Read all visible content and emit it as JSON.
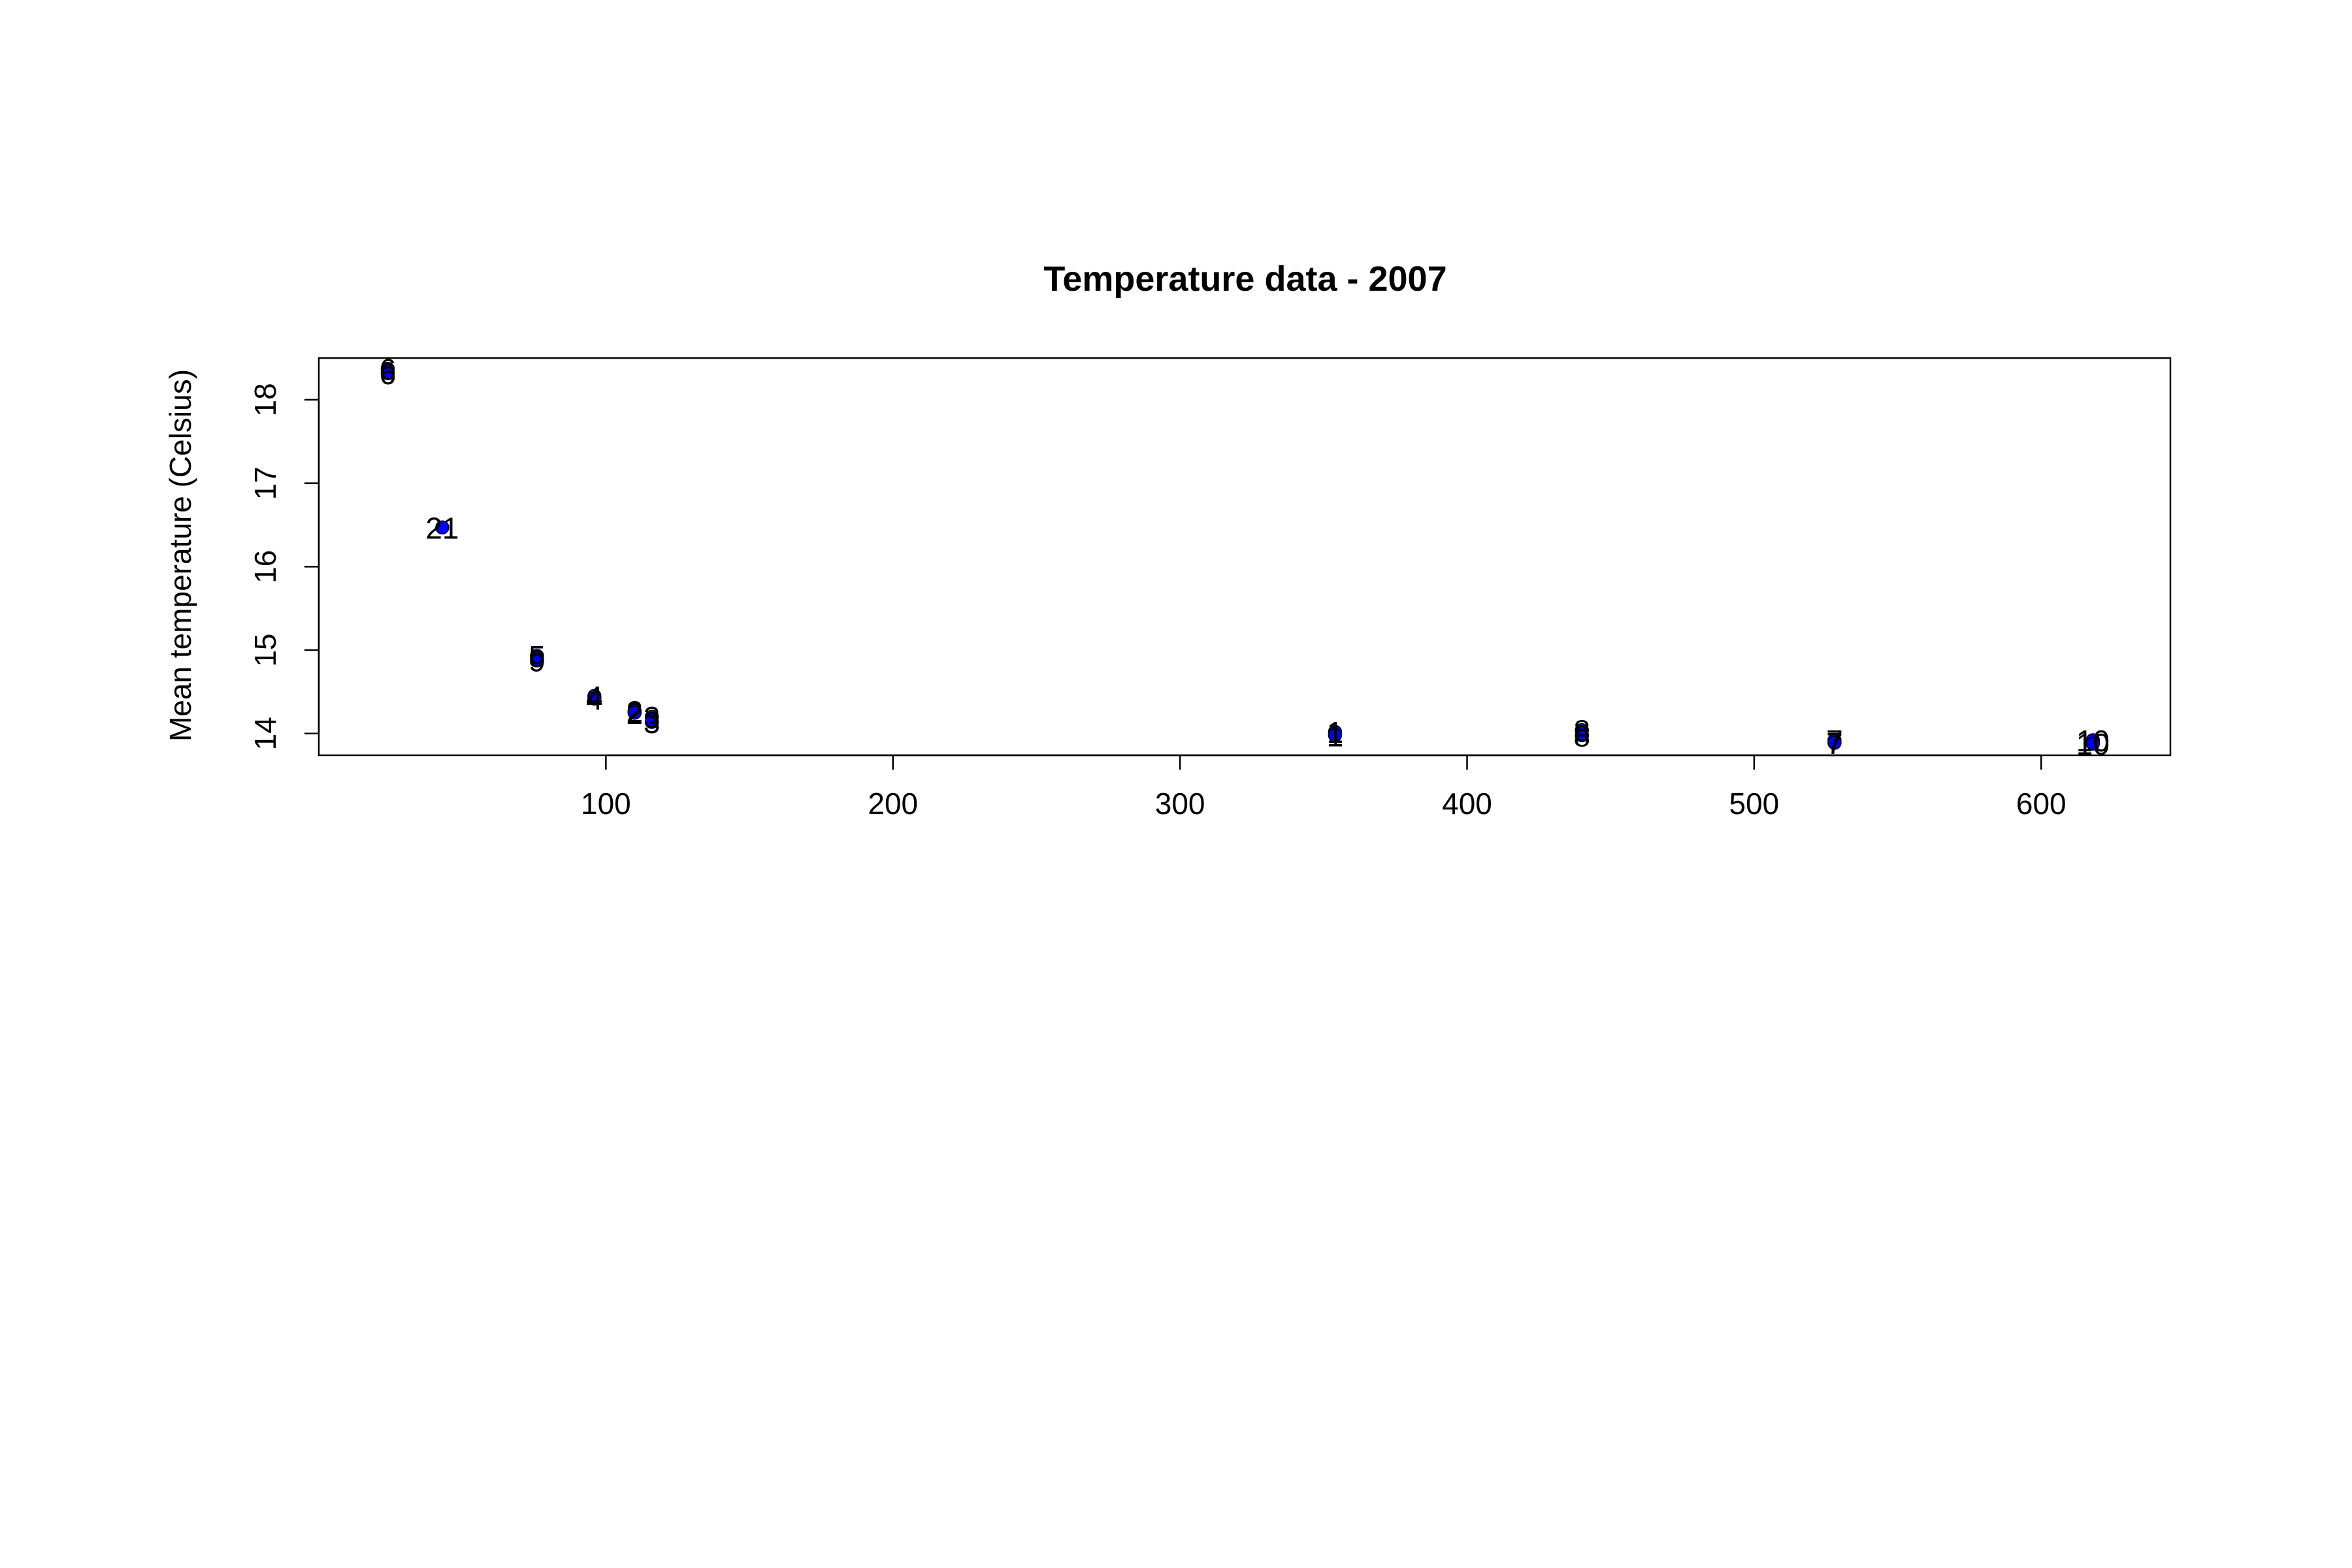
{
  "chart_data": {
    "type": "scatter",
    "title": "Temperature data -  2007",
    "xlabel": "",
    "ylabel": "Mean temperature (Celsius)",
    "xlim": [
      0,
      645
    ],
    "ylim": [
      13.74,
      18.5
    ],
    "xticks": [
      "100",
      "200",
      "300",
      "400",
      "500",
      "600"
    ],
    "yticks": [
      "14",
      "15",
      "16",
      "17",
      "18"
    ],
    "grid": false,
    "legend": "none",
    "point_color": "#0000ff",
    "points": [
      {
        "x": 24,
        "y": 18.37,
        "label": "6"
      },
      {
        "x": 24,
        "y": 18.32,
        "label": "6"
      },
      {
        "x": 43,
        "y": 16.47,
        "label": "21"
      },
      {
        "x": 76,
        "y": 14.93,
        "label": "5"
      },
      {
        "x": 76,
        "y": 14.88,
        "label": "9"
      },
      {
        "x": 96,
        "y": 14.45,
        "label": "4"
      },
      {
        "x": 96,
        "y": 14.42,
        "label": "4"
      },
      {
        "x": 110,
        "y": 14.27,
        "label": "2"
      },
      {
        "x": 110,
        "y": 14.25,
        "label": "2"
      },
      {
        "x": 116,
        "y": 14.2,
        "label": "3"
      },
      {
        "x": 116,
        "y": 14.14,
        "label": "3"
      },
      {
        "x": 354,
        "y": 14.02,
        "label": "1"
      },
      {
        "x": 354,
        "y": 13.98,
        "label": "1"
      },
      {
        "x": 440,
        "y": 14.04,
        "label": "8"
      },
      {
        "x": 440,
        "y": 13.98,
        "label": "8"
      },
      {
        "x": 528,
        "y": 13.92,
        "label": "7"
      },
      {
        "x": 528,
        "y": 13.89,
        "label": "7"
      },
      {
        "x": 618,
        "y": 13.92,
        "label": "10"
      },
      {
        "x": 618,
        "y": 13.88,
        "label": "10"
      }
    ]
  }
}
